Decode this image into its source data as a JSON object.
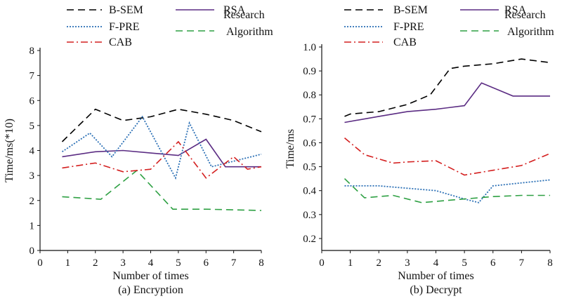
{
  "chart_data": [
    {
      "type": "line",
      "caption": "(a) Encryption",
      "xlabel": "Number of times",
      "ylabel": "Time/ms(*10)",
      "xlim": [
        0,
        8
      ],
      "ylim": [
        0,
        8
      ],
      "xticks": [
        0,
        1,
        2,
        3,
        4,
        5,
        6,
        7,
        8
      ],
      "yticks": [
        0,
        1,
        2,
        3,
        4,
        5,
        6,
        7,
        8
      ],
      "grid": false,
      "legend_position": "top",
      "series": [
        {
          "name": "B-SEM",
          "color": "#000000",
          "dash": "10,6",
          "points": [
            [
              0.8,
              4.35
            ],
            [
              2.0,
              5.65
            ],
            [
              3.0,
              5.2
            ],
            [
              4.0,
              5.35
            ],
            [
              5.0,
              5.65
            ],
            [
              6.0,
              5.45
            ],
            [
              7.0,
              5.2
            ],
            [
              8.0,
              4.75
            ]
          ]
        },
        {
          "name": "RSA",
          "color": "#5b2c83",
          "dash": "",
          "points": [
            [
              0.8,
              3.75
            ],
            [
              2.0,
              3.95
            ],
            [
              3.0,
              4.0
            ],
            [
              4.0,
              3.9
            ],
            [
              5.0,
              3.8
            ],
            [
              6.0,
              4.45
            ],
            [
              6.7,
              3.35
            ],
            [
              8.0,
              3.35
            ]
          ]
        },
        {
          "name": "F-PRE",
          "color": "#2a6fb5",
          "dash": "2,2",
          "points": [
            [
              0.8,
              3.95
            ],
            [
              1.8,
              4.7
            ],
            [
              2.6,
              3.75
            ],
            [
              3.7,
              5.35
            ],
            [
              4.9,
              2.9
            ],
            [
              5.4,
              5.1
            ],
            [
              6.2,
              3.35
            ],
            [
              8.0,
              3.85
            ]
          ]
        },
        {
          "name": "Research Algorithm",
          "color": "#2ea043",
          "dash": "10,6",
          "points": [
            [
              0.8,
              2.15
            ],
            [
              2.2,
              2.05
            ],
            [
              3.5,
              3.2
            ],
            [
              4.8,
              1.65
            ],
            [
              6.0,
              1.65
            ],
            [
              8.0,
              1.6
            ]
          ]
        },
        {
          "name": "CAB",
          "color": "#d42020",
          "dash": "10,4,2,4",
          "points": [
            [
              0.8,
              3.3
            ],
            [
              2.0,
              3.5
            ],
            [
              3.0,
              3.15
            ],
            [
              4.0,
              3.25
            ],
            [
              5.0,
              4.35
            ],
            [
              6.0,
              2.9
            ],
            [
              7.0,
              3.75
            ],
            [
              7.5,
              3.25
            ],
            [
              8.0,
              3.35
            ]
          ]
        }
      ]
    },
    {
      "type": "line",
      "caption": "(b) Decrypt",
      "xlabel": "Number of times",
      "ylabel": "Time/ms",
      "xlim": [
        0,
        8
      ],
      "ylim": [
        0.15,
        1.0
      ],
      "xticks": [
        0,
        1,
        2,
        3,
        4,
        5,
        6,
        7,
        8
      ],
      "yticks": [
        0.2,
        0.3,
        0.4,
        0.5,
        0.6,
        0.7,
        0.8,
        0.9,
        1.0
      ],
      "grid": false,
      "legend_position": "top",
      "series": [
        {
          "name": "B-SEM",
          "color": "#000000",
          "dash": "10,6",
          "points": [
            [
              0.8,
              0.71
            ],
            [
              1.0,
              0.72
            ],
            [
              2.0,
              0.73
            ],
            [
              3.0,
              0.76
            ],
            [
              3.8,
              0.8
            ],
            [
              4.5,
              0.91
            ],
            [
              5.0,
              0.92
            ],
            [
              6.0,
              0.93
            ],
            [
              7.0,
              0.95
            ],
            [
              8.0,
              0.935
            ]
          ]
        },
        {
          "name": "RSA",
          "color": "#5b2c83",
          "dash": "",
          "points": [
            [
              0.8,
              0.685
            ],
            [
              2.0,
              0.71
            ],
            [
              3.0,
              0.73
            ],
            [
              4.0,
              0.74
            ],
            [
              5.0,
              0.755
            ],
            [
              5.6,
              0.85
            ],
            [
              6.7,
              0.795
            ],
            [
              8.0,
              0.795
            ]
          ]
        },
        {
          "name": "F-PRE",
          "color": "#2a6fb5",
          "dash": "2,2",
          "points": [
            [
              0.8,
              0.42
            ],
            [
              2.0,
              0.42
            ],
            [
              3.0,
              0.41
            ],
            [
              4.0,
              0.4
            ],
            [
              5.0,
              0.365
            ],
            [
              5.5,
              0.35
            ],
            [
              6.0,
              0.42
            ],
            [
              8.0,
              0.445
            ]
          ]
        },
        {
          "name": "Research Algorithm",
          "color": "#2ea043",
          "dash": "10,6",
          "points": [
            [
              0.8,
              0.45
            ],
            [
              1.5,
              0.37
            ],
            [
              2.5,
              0.38
            ],
            [
              3.5,
              0.35
            ],
            [
              5.0,
              0.365
            ],
            [
              6.0,
              0.375
            ],
            [
              7.0,
              0.38
            ],
            [
              8.0,
              0.38
            ]
          ]
        },
        {
          "name": "CAB",
          "color": "#d42020",
          "dash": "10,4,2,4",
          "points": [
            [
              0.8,
              0.62
            ],
            [
              1.5,
              0.55
            ],
            [
              2.5,
              0.515
            ],
            [
              3.0,
              0.52
            ],
            [
              4.0,
              0.525
            ],
            [
              5.0,
              0.465
            ],
            [
              6.0,
              0.485
            ],
            [
              7.0,
              0.505
            ],
            [
              8.0,
              0.555
            ]
          ]
        }
      ]
    }
  ],
  "legend": {
    "items": [
      {
        "label": "B-SEM",
        "series": 0
      },
      {
        "label": "RSA",
        "series": 1
      },
      {
        "label": "F-PRE",
        "series": 2
      },
      {
        "label_lines": [
          "Research",
          "Algorithm"
        ],
        "series": 3
      },
      {
        "label": "CAB",
        "series": 4
      }
    ]
  }
}
